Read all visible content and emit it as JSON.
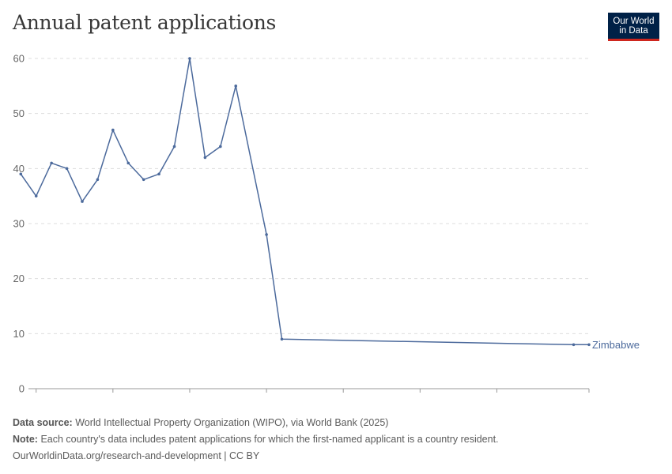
{
  "header": {
    "title": "Annual patent applications",
    "logo_line1": "Our World",
    "logo_line2": "in Data"
  },
  "colors": {
    "series": "#4c6a9c",
    "grid": "#dddddd",
    "axis_text": "#666666",
    "logo_bg": "#002147",
    "logo_accent": "#ce261e"
  },
  "chart_data": {
    "type": "line",
    "title": "Annual patent applications",
    "xlabel": "",
    "ylabel": "",
    "xlim": [
      1979.5,
      2016
    ],
    "ylim": [
      0,
      60
    ],
    "x_ticks": [
      "1980",
      "1985",
      "1990",
      "1995",
      "2000",
      "2005",
      "2010",
      "2016"
    ],
    "x_tick_values": [
      1980,
      1985,
      1990,
      1995,
      2000,
      2005,
      2010,
      2016
    ],
    "y_ticks": [
      "0",
      "10",
      "20",
      "30",
      "40",
      "50",
      "60"
    ],
    "y_tick_values": [
      0,
      10,
      20,
      30,
      40,
      50,
      60
    ],
    "grid": "horizontal dashed",
    "series": [
      {
        "name": "Zimbabwe",
        "x": [
          1979,
          1980,
          1981,
          1982,
          1983,
          1984,
          1985,
          1986,
          1987,
          1988,
          1989,
          1990,
          1991,
          1992,
          1993,
          1995,
          1996,
          2015,
          2016
        ],
        "values": [
          39,
          35,
          41,
          40,
          34,
          38,
          47,
          41,
          38,
          39,
          44,
          60,
          42,
          44,
          55,
          28,
          9,
          8,
          8
        ]
      }
    ]
  },
  "footer": {
    "source_label": "Data source:",
    "source_text": "World Intellectual Property Organization (WIPO), via World Bank (2025)",
    "note_label": "Note:",
    "note_text": "Each country's data includes patent applications for which the first-named applicant is a country resident.",
    "url": "OurWorldinData.org/research-and-development | CC BY"
  }
}
